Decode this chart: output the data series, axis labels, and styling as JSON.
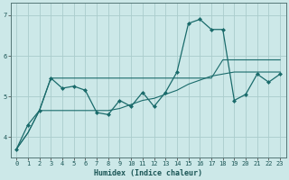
{
  "xlabel": "Humidex (Indice chaleur)",
  "background_color": "#cce8e8",
  "grid_color": "#aacccc",
  "line_color": "#1a6b6b",
  "xlim": [
    -0.5,
    23.5
  ],
  "ylim": [
    3.5,
    7.3
  ],
  "yticks": [
    4,
    5,
    6,
    7
  ],
  "xticks": [
    0,
    1,
    2,
    3,
    4,
    5,
    6,
    7,
    8,
    9,
    10,
    11,
    12,
    13,
    14,
    15,
    16,
    17,
    18,
    19,
    20,
    21,
    22,
    23
  ],
  "line1_x": [
    0,
    1,
    2,
    3,
    4,
    5,
    6,
    7,
    8,
    9,
    10,
    11,
    12,
    13,
    14,
    15,
    16,
    17,
    18,
    19,
    20,
    21,
    22,
    23
  ],
  "line1_y": [
    3.7,
    4.3,
    4.65,
    5.45,
    5.2,
    5.25,
    5.15,
    4.6,
    4.55,
    4.9,
    4.75,
    5.1,
    4.75,
    5.1,
    5.6,
    6.8,
    6.9,
    6.65,
    6.65,
    4.9,
    5.05,
    5.55,
    5.35,
    5.55
  ],
  "line2_x": [
    0,
    1,
    2,
    3,
    4,
    5,
    6,
    7,
    8,
    9,
    10,
    11,
    12,
    13,
    14,
    15,
    16,
    17,
    18,
    19,
    20,
    21,
    22,
    23
  ],
  "line2_y": [
    3.7,
    4.1,
    4.65,
    5.45,
    5.45,
    5.45,
    5.45,
    5.45,
    5.45,
    5.45,
    5.45,
    5.45,
    5.45,
    5.45,
    5.45,
    5.45,
    5.45,
    5.45,
    5.9,
    5.9,
    5.9,
    5.9,
    5.9,
    5.9
  ],
  "line3_x": [
    0,
    1,
    2,
    3,
    4,
    5,
    6,
    7,
    8,
    9,
    10,
    11,
    12,
    13,
    14,
    15,
    16,
    17,
    18,
    19,
    20,
    21,
    22,
    23
  ],
  "line3_y": [
    3.7,
    4.1,
    4.65,
    4.65,
    4.65,
    4.65,
    4.65,
    4.65,
    4.65,
    4.7,
    4.8,
    4.9,
    4.95,
    5.05,
    5.15,
    5.3,
    5.4,
    5.5,
    5.55,
    5.6,
    5.6,
    5.6,
    5.6,
    5.6
  ]
}
